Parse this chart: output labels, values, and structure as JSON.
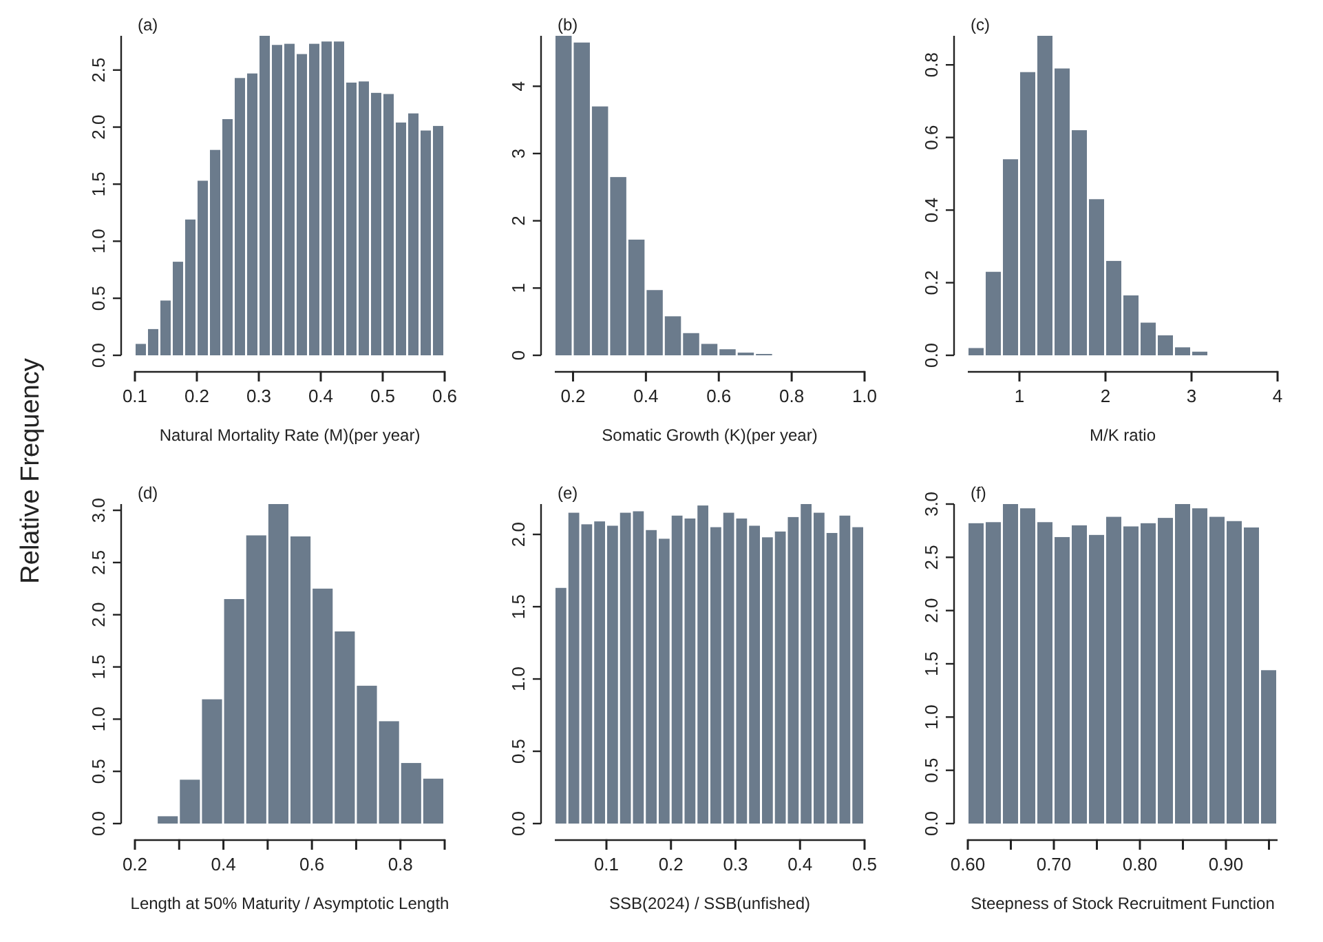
{
  "chart_data": [
    {
      "type": "histogram",
      "title": "(a)",
      "xlabel": "Natural Mortality Rate (M)(per year)",
      "ylabel": "Relative Frequency",
      "color": "#6b7b8c",
      "bins": [
        0.1,
        0.12,
        0.14,
        0.16,
        0.18,
        0.2,
        0.22,
        0.24,
        0.26,
        0.28,
        0.3,
        0.32,
        0.34,
        0.36,
        0.38,
        0.4,
        0.42,
        0.44,
        0.46,
        0.48,
        0.5,
        0.52,
        0.54,
        0.56,
        0.58,
        0.6
      ],
      "values": [
        0.1,
        0.23,
        0.48,
        0.82,
        1.19,
        1.53,
        1.8,
        2.07,
        2.43,
        2.47,
        2.8,
        2.72,
        2.73,
        2.64,
        2.73,
        2.75,
        2.75,
        2.39,
        2.4,
        2.3,
        2.29,
        2.04,
        2.12,
        1.97,
        2.01
      ],
      "xlim": [
        0.1,
        0.6
      ],
      "xticks": [
        0.1,
        0.2,
        0.3,
        0.4,
        0.5,
        0.6
      ],
      "ylim": [
        0,
        2.8
      ],
      "yticks": [
        {
          "value": 0,
          "label": "0.0"
        },
        0.5,
        {
          "value": 1,
          "label": "1.0"
        },
        1.5,
        {
          "value": 2,
          "label": "2.0"
        },
        2.5
      ]
    },
    {
      "type": "histogram",
      "title": "(b)",
      "xlabel": "Somatic Growth (K)(per year)",
      "color": "#6b7b8c",
      "bins": [
        0.15,
        0.2,
        0.25,
        0.3,
        0.35,
        0.4,
        0.45,
        0.5,
        0.55,
        0.6,
        0.65,
        0.7,
        0.75
      ],
      "values": [
        4.75,
        4.65,
        3.7,
        2.65,
        1.72,
        0.97,
        0.58,
        0.33,
        0.17,
        0.09,
        0.04,
        0.02
      ],
      "xlim": [
        0.15,
        1.0
      ],
      "xticks": [
        0.2,
        0.4,
        0.6,
        0.8,
        {
          "value": 1,
          "label": "1.0"
        }
      ],
      "ylim": [
        0,
        4.75
      ],
      "yticks": [
        0,
        1,
        2,
        3,
        4
      ]
    },
    {
      "type": "histogram",
      "title": "(c)",
      "xlabel": "M/K ratio",
      "color": "#6b7b8c",
      "bins": [
        0.4,
        0.6,
        0.8,
        1.0,
        1.2,
        1.4,
        1.6,
        1.8,
        2.0,
        2.2,
        2.4,
        2.6,
        2.8,
        3.0,
        3.2
      ],
      "values": [
        0.02,
        0.23,
        0.54,
        0.78,
        0.88,
        0.79,
        0.62,
        0.43,
        0.26,
        0.165,
        0.09,
        0.055,
        0.022,
        0.01
      ],
      "xlim": [
        0.4,
        4
      ],
      "xticks": [
        1,
        2,
        3,
        4
      ],
      "ylim": [
        0,
        0.88
      ],
      "yticks": [
        {
          "value": 0,
          "label": "0.0"
        },
        0.2,
        0.4,
        0.6,
        0.8
      ]
    },
    {
      "type": "histogram",
      "title": "(d)",
      "xlabel": "Length at 50% Maturity / Asymptotic Length",
      "color": "#6b7b8c",
      "bins": [
        0.25,
        0.3,
        0.35,
        0.4,
        0.45,
        0.5,
        0.55,
        0.6,
        0.65,
        0.7,
        0.75,
        0.8,
        0.85,
        0.9
      ],
      "values": [
        0.07,
        0.42,
        1.19,
        2.15,
        2.76,
        3.06,
        2.75,
        2.25,
        1.84,
        1.32,
        0.98,
        0.58,
        0.43
      ],
      "xlim": [
        0.2,
        0.9
      ],
      "xticks": [
        0.2,
        {
          "value": 0.3,
          "label": null
        },
        0.4,
        {
          "value": 0.5,
          "label": null
        },
        0.6,
        {
          "value": 0.7,
          "label": null
        },
        0.8,
        {
          "value": 0.9,
          "label": null
        }
      ],
      "ylim": [
        0,
        3.06
      ],
      "yticks": [
        {
          "value": 0,
          "label": "0.0"
        },
        0.5,
        {
          "value": 1,
          "label": "1.0"
        },
        1.5,
        {
          "value": 2,
          "label": "2.0"
        },
        2.5,
        {
          "value": 3,
          "label": "3.0"
        }
      ]
    },
    {
      "type": "histogram",
      "title": "(e)",
      "xlabel": "SSB(2024) / SSB(unfished)",
      "color": "#6b7b8c",
      "bins": [
        0.02,
        0.04,
        0.06,
        0.08,
        0.1,
        0.12,
        0.14,
        0.16,
        0.18,
        0.2,
        0.22,
        0.24,
        0.26,
        0.28,
        0.3,
        0.32,
        0.34,
        0.36,
        0.38,
        0.4,
        0.42,
        0.44,
        0.46,
        0.48,
        0.5
      ],
      "values": [
        1.63,
        2.15,
        2.07,
        2.09,
        2.06,
        2.15,
        2.16,
        2.03,
        1.97,
        2.13,
        2.11,
        2.2,
        2.05,
        2.15,
        2.11,
        2.06,
        1.98,
        2.02,
        2.12,
        2.21,
        2.15,
        2.01,
        2.13,
        2.05
      ],
      "xlim": [
        0.02,
        0.5
      ],
      "xticks": [
        0.1,
        0.2,
        0.3,
        0.4,
        0.5
      ],
      "ylim": [
        0,
        2.21
      ],
      "yticks": [
        {
          "value": 0,
          "label": "0.0"
        },
        0.5,
        {
          "value": 1,
          "label": "1.0"
        },
        1.5,
        {
          "value": 2,
          "label": "2.0"
        }
      ]
    },
    {
      "type": "histogram",
      "title": "(f)",
      "xlabel": "Steepness of Stock Recruitment Function",
      "color": "#6b7b8c",
      "bins": [
        0.6,
        0.62,
        0.64,
        0.66,
        0.68,
        0.7,
        0.72,
        0.74,
        0.76,
        0.78,
        0.8,
        0.82,
        0.84,
        0.86,
        0.88,
        0.9,
        0.92,
        0.94,
        0.96
      ],
      "values": [
        2.82,
        2.83,
        3.0,
        2.96,
        2.83,
        2.69,
        2.8,
        2.71,
        2.88,
        2.79,
        2.82,
        2.87,
        3.0,
        2.96,
        2.88,
        2.84,
        2.78,
        1.44
      ],
      "xlim": [
        0.6,
        0.96
      ],
      "xticks": [
        {
          "value": 0.6,
          "label": "0.60"
        },
        {
          "value": 0.65,
          "label": null
        },
        {
          "value": 0.7,
          "label": "0.70"
        },
        {
          "value": 0.75,
          "label": null
        },
        {
          "value": 0.8,
          "label": "0.80"
        },
        {
          "value": 0.85,
          "label": null
        },
        {
          "value": 0.9,
          "label": "0.90"
        },
        {
          "value": 0.95,
          "label": null
        }
      ],
      "ylim": [
        0,
        3.0
      ],
      "yticks": [
        {
          "value": 0,
          "label": "0.0"
        },
        0.5,
        {
          "value": 1,
          "label": "1.0"
        },
        1.5,
        {
          "value": 2,
          "label": "2.0"
        },
        2.5,
        {
          "value": 3,
          "label": "3.0"
        }
      ]
    }
  ]
}
